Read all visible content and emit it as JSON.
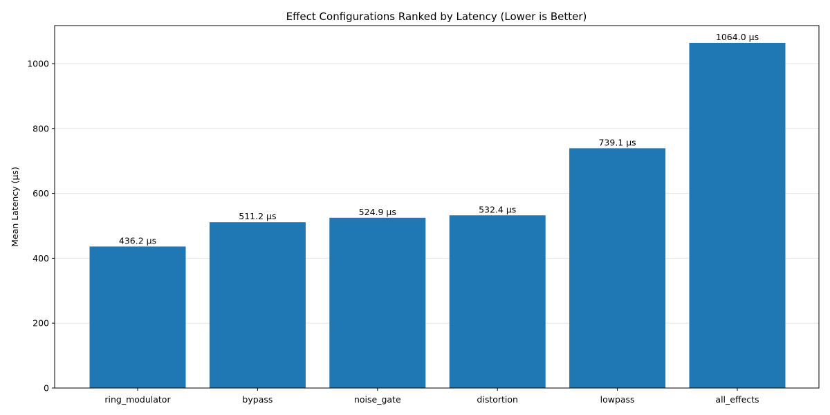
{
  "chart_data": {
    "type": "bar",
    "title": "Effect Configurations Ranked by Latency (Lower is Better)",
    "xlabel": "",
    "ylabel": "Mean Latency (µs)",
    "categories": [
      "ring_modulator",
      "bypass",
      "noise_gate",
      "distortion",
      "lowpass",
      "all_effects"
    ],
    "values": [
      436.2,
      511.2,
      524.9,
      532.4,
      739.1,
      1064.0
    ],
    "data_labels": [
      "436.2 µs",
      "511.2 µs",
      "524.9 µs",
      "532.4 µs",
      "739.1 µs",
      "1064.0 µs"
    ],
    "ylim": [
      0,
      1117.2
    ],
    "yticks": [
      0,
      200,
      400,
      600,
      800,
      1000
    ],
    "grid": "y",
    "bar_color": "#1f77b4",
    "grid_color": "#e6e6e6"
  }
}
